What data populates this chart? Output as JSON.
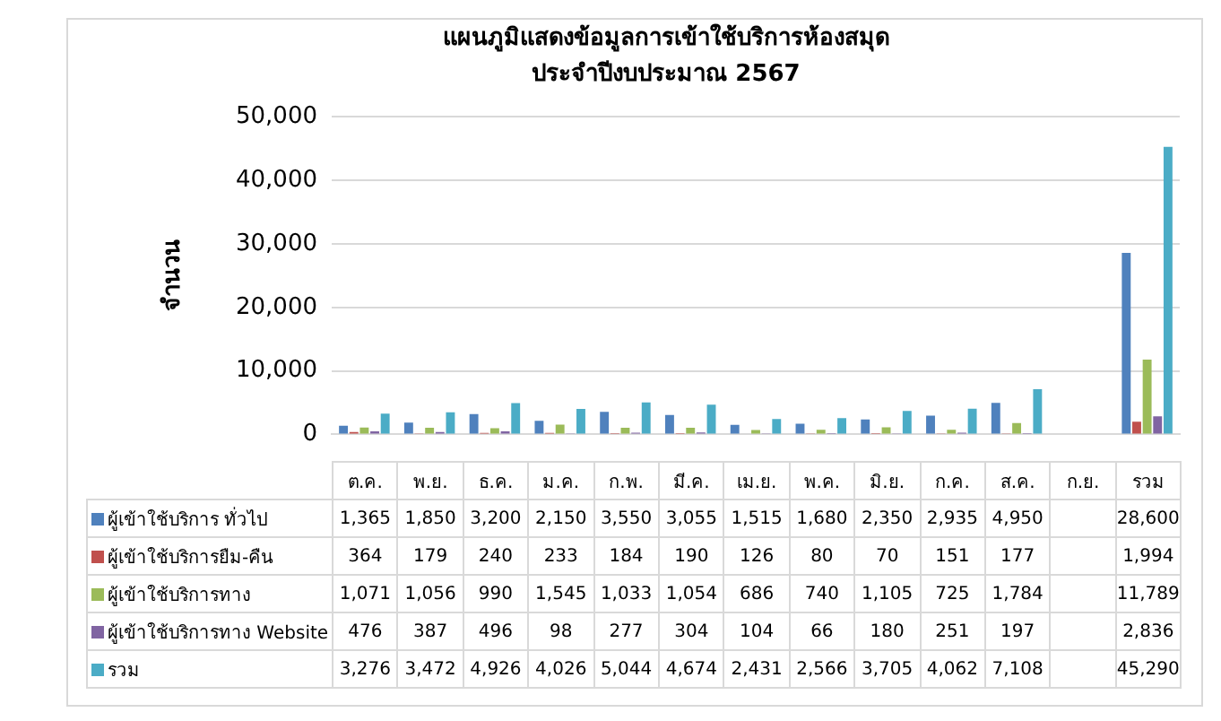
{
  "chart_data": {
    "type": "bar",
    "title": "แผนภูมิแสดงข้อมูลการเข้าใช้บริการห้องสมุด",
    "subtitle": "ประจำปีงบประมาณ 2567",
    "ylabel": "จำนวน",
    "categories": [
      "ต.ค.",
      "พ.ย.",
      "ธ.ค.",
      "ม.ค.",
      "ก.พ.",
      "มี.ค.",
      "เม.ย.",
      "พ.ค.",
      "มิ.ย.",
      "ก.ค.",
      "ส.ค.",
      "ก.ย.",
      "รวม"
    ],
    "series": [
      {
        "name": "ผู้เข้าใช้บริการ ทั่วไป",
        "color": "#4f81bd",
        "values": [
          1365,
          1850,
          3200,
          2150,
          3550,
          3055,
          1515,
          1680,
          2350,
          2935,
          4950,
          null,
          28600
        ],
        "value_labels": [
          "1,365",
          "1,850",
          "3,200",
          "2,150",
          "3,550",
          "3,055",
          "1,515",
          "1,680",
          "2,350",
          "2,935",
          "4,950",
          null,
          "28,600"
        ]
      },
      {
        "name": "ผู้เข้าใช้บริการยืม-คืน",
        "color": "#c0504d",
        "values": [
          364,
          179,
          240,
          233,
          184,
          190,
          126,
          80,
          70,
          151,
          177,
          null,
          1994
        ],
        "value_labels": [
          "364",
          "179",
          "240",
          "233",
          "184",
          "190",
          "126",
          "80",
          "70",
          "151",
          "177",
          null,
          "1,994"
        ]
      },
      {
        "name": "ผู้เข้าใช้บริการทาง",
        "color": "#9bbb59",
        "values": [
          1071,
          1056,
          990,
          1545,
          1033,
          1054,
          686,
          740,
          1105,
          725,
          1784,
          null,
          11789
        ],
        "value_labels": [
          "1,071",
          "1,056",
          "990",
          "1,545",
          "1,033",
          "1,054",
          "686",
          "740",
          "1,105",
          "725",
          "1,784",
          null,
          "11,789"
        ]
      },
      {
        "name": "ผู้เข้าใช้บริการทาง Website",
        "color": "#8064a2",
        "values": [
          476,
          387,
          496,
          98,
          277,
          304,
          104,
          66,
          180,
          251,
          197,
          null,
          2836
        ],
        "value_labels": [
          "476",
          "387",
          "496",
          "98",
          "277",
          "304",
          "104",
          "66",
          "180",
          "251",
          "197",
          null,
          "2,836"
        ]
      },
      {
        "name": "รวม",
        "color": "#4bacc6",
        "values": [
          3276,
          3472,
          4926,
          4026,
          5044,
          4674,
          2431,
          2566,
          3705,
          4062,
          7108,
          null,
          45290
        ],
        "value_labels": [
          "3,276",
          "3,472",
          "4,926",
          "4,026",
          "5,044",
          "4,674",
          "2,431",
          "2,566",
          "3,705",
          "4,062",
          "7,108",
          null,
          "45,290"
        ]
      }
    ],
    "ylim": [
      0,
      50000
    ],
    "yticks": [
      {
        "value": 0,
        "label": "0"
      },
      {
        "value": 10000,
        "label": "10,000"
      },
      {
        "value": 20000,
        "label": "20,000"
      },
      {
        "value": 30000,
        "label": "30,000"
      },
      {
        "value": 40000,
        "label": "40,000"
      },
      {
        "value": 50000,
        "label": "50,000"
      }
    ],
    "grid": "y",
    "legend": "bottom"
  }
}
